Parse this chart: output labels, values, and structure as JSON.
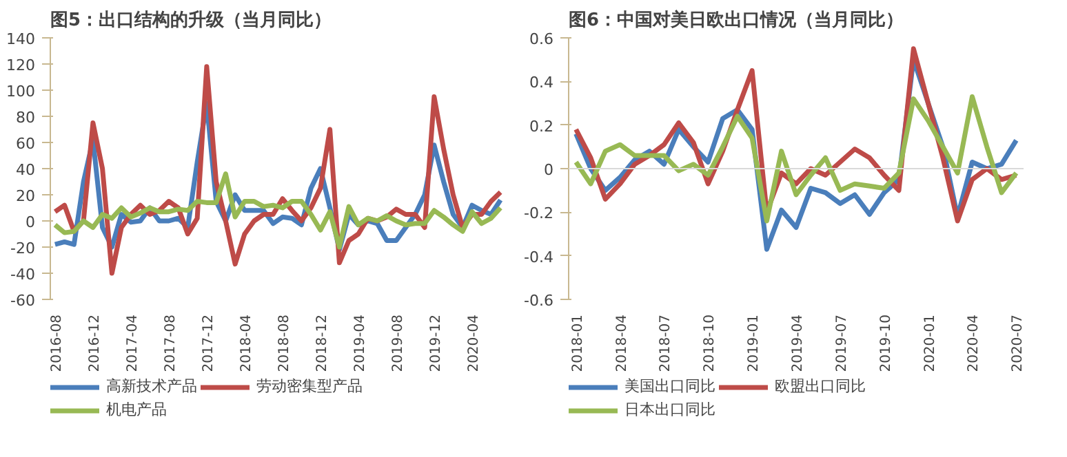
{
  "chart_data": [
    {
      "type": "line",
      "title": "图5：出口结构的升级（当月同比）",
      "categories": [
        "2016-08",
        null,
        null,
        null,
        "2016-12",
        null,
        null,
        null,
        "2017-04",
        null,
        null,
        null,
        "2017-08",
        null,
        null,
        null,
        "2017-12",
        null,
        null,
        null,
        "2018-04",
        null,
        null,
        null,
        "2018-08",
        null,
        null,
        null,
        "2018-12",
        null,
        null,
        null,
        "2019-04",
        null,
        null,
        null,
        "2019-08",
        null,
        null,
        null,
        "2019-12",
        null,
        null,
        null,
        "2020-04",
        null,
        null,
        null
      ],
      "series": [
        {
          "name": "高新技术产品",
          "color": "#4a7ebb",
          "values": [
            -18,
            -16,
            -18,
            30,
            62,
            -5,
            -20,
            5,
            -1,
            0,
            10,
            0,
            0,
            2,
            -5,
            45,
            90,
            15,
            0,
            20,
            8,
            8,
            8,
            -2,
            3,
            2,
            -3,
            25,
            40,
            10,
            -22,
            5,
            -3,
            0,
            -2,
            -15,
            -15,
            -5,
            5,
            20,
            58,
            30,
            5,
            -5,
            12,
            8,
            5,
            16
          ]
        },
        {
          "name": "劳动密集型产品",
          "color": "#be4b48",
          "values": [
            7,
            12,
            -8,
            0,
            75,
            40,
            -40,
            -5,
            5,
            12,
            5,
            8,
            15,
            10,
            -10,
            2,
            118,
            30,
            0,
            -33,
            -10,
            0,
            5,
            5,
            17,
            8,
            0,
            10,
            25,
            70,
            -32,
            -15,
            -10,
            2,
            0,
            3,
            9,
            5,
            5,
            -5,
            95,
            55,
            20,
            -5,
            5,
            5,
            15,
            22
          ]
        },
        {
          "name": "机电产品",
          "color": "#98b954",
          "values": [
            -3,
            -9,
            -8,
            0,
            -5,
            5,
            2,
            10,
            3,
            6,
            10,
            7,
            7,
            9,
            8,
            15,
            14,
            14,
            36,
            3,
            15,
            15,
            11,
            12,
            10,
            15,
            15,
            5,
            -7,
            7,
            -20,
            11,
            -3,
            2,
            0,
            4,
            0,
            -3,
            -2,
            -2,
            8,
            3,
            -3,
            -8,
            7,
            -2,
            2,
            10
          ]
        }
      ],
      "ylim": [
        -60,
        140
      ],
      "yticks": [
        -60,
        -40,
        -20,
        0,
        20,
        40,
        60,
        80,
        100,
        120,
        140
      ],
      "grid": false,
      "legend": "bottom"
    },
    {
      "type": "line",
      "title": "图6：中国对美日欧出口情况（当月同比）",
      "categories": [
        "2018-01",
        null,
        null,
        "2018-04",
        null,
        null,
        "2018-07",
        null,
        null,
        "2018-10",
        null,
        null,
        "2019-01",
        null,
        null,
        "2019-04",
        null,
        null,
        "2019-07",
        null,
        null,
        "2019-10",
        null,
        null,
        "2020-01",
        null,
        null,
        "2020-04",
        null,
        null,
        "2020-07"
      ],
      "series": [
        {
          "name": "美国出口同比",
          "color": "#4a7ebb",
          "values": [
            0.16,
            0.0,
            -0.1,
            -0.04,
            0.04,
            0.08,
            0.02,
            0.18,
            0.1,
            0.03,
            0.23,
            0.27,
            0.18,
            -0.37,
            -0.19,
            -0.27,
            -0.09,
            -0.11,
            -0.16,
            -0.12,
            -0.21,
            -0.11,
            -0.05,
            0.5,
            0.3,
            0.1,
            -0.22,
            0.03,
            0.0,
            0.02,
            0.13
          ]
        },
        {
          "name": "欧盟出口同比",
          "color": "#be4b48",
          "values": [
            0.18,
            0.05,
            -0.14,
            -0.07,
            0.02,
            0.06,
            0.11,
            0.21,
            0.12,
            -0.07,
            0.08,
            0.27,
            0.45,
            -0.2,
            -0.02,
            -0.07,
            0.0,
            -0.03,
            0.03,
            0.09,
            0.05,
            -0.03,
            -0.1,
            0.55,
            0.3,
            0.05,
            -0.24,
            -0.05,
            0.0,
            -0.05,
            -0.03
          ]
        },
        {
          "name": "日本出口同比",
          "color": "#98b954",
          "values": [
            0.03,
            -0.07,
            0.08,
            0.11,
            0.06,
            0.06,
            0.06,
            -0.01,
            0.02,
            -0.03,
            0.1,
            0.24,
            0.14,
            -0.24,
            0.08,
            -0.12,
            -0.03,
            0.05,
            -0.1,
            -0.07,
            -0.08,
            -0.09,
            -0.02,
            0.32,
            0.22,
            0.1,
            -0.02,
            0.33,
            0.1,
            -0.11,
            -0.02
          ]
        }
      ],
      "ylim": [
        -0.6,
        0.6
      ],
      "yticks": [
        -0.6,
        -0.4,
        -0.2,
        0,
        0.2,
        0.4,
        0.6
      ],
      "grid": false,
      "legend": "bottom",
      "ref_lines": [
        {
          "axis": "y",
          "value": 0,
          "color": "#d9d9d9"
        }
      ]
    }
  ]
}
